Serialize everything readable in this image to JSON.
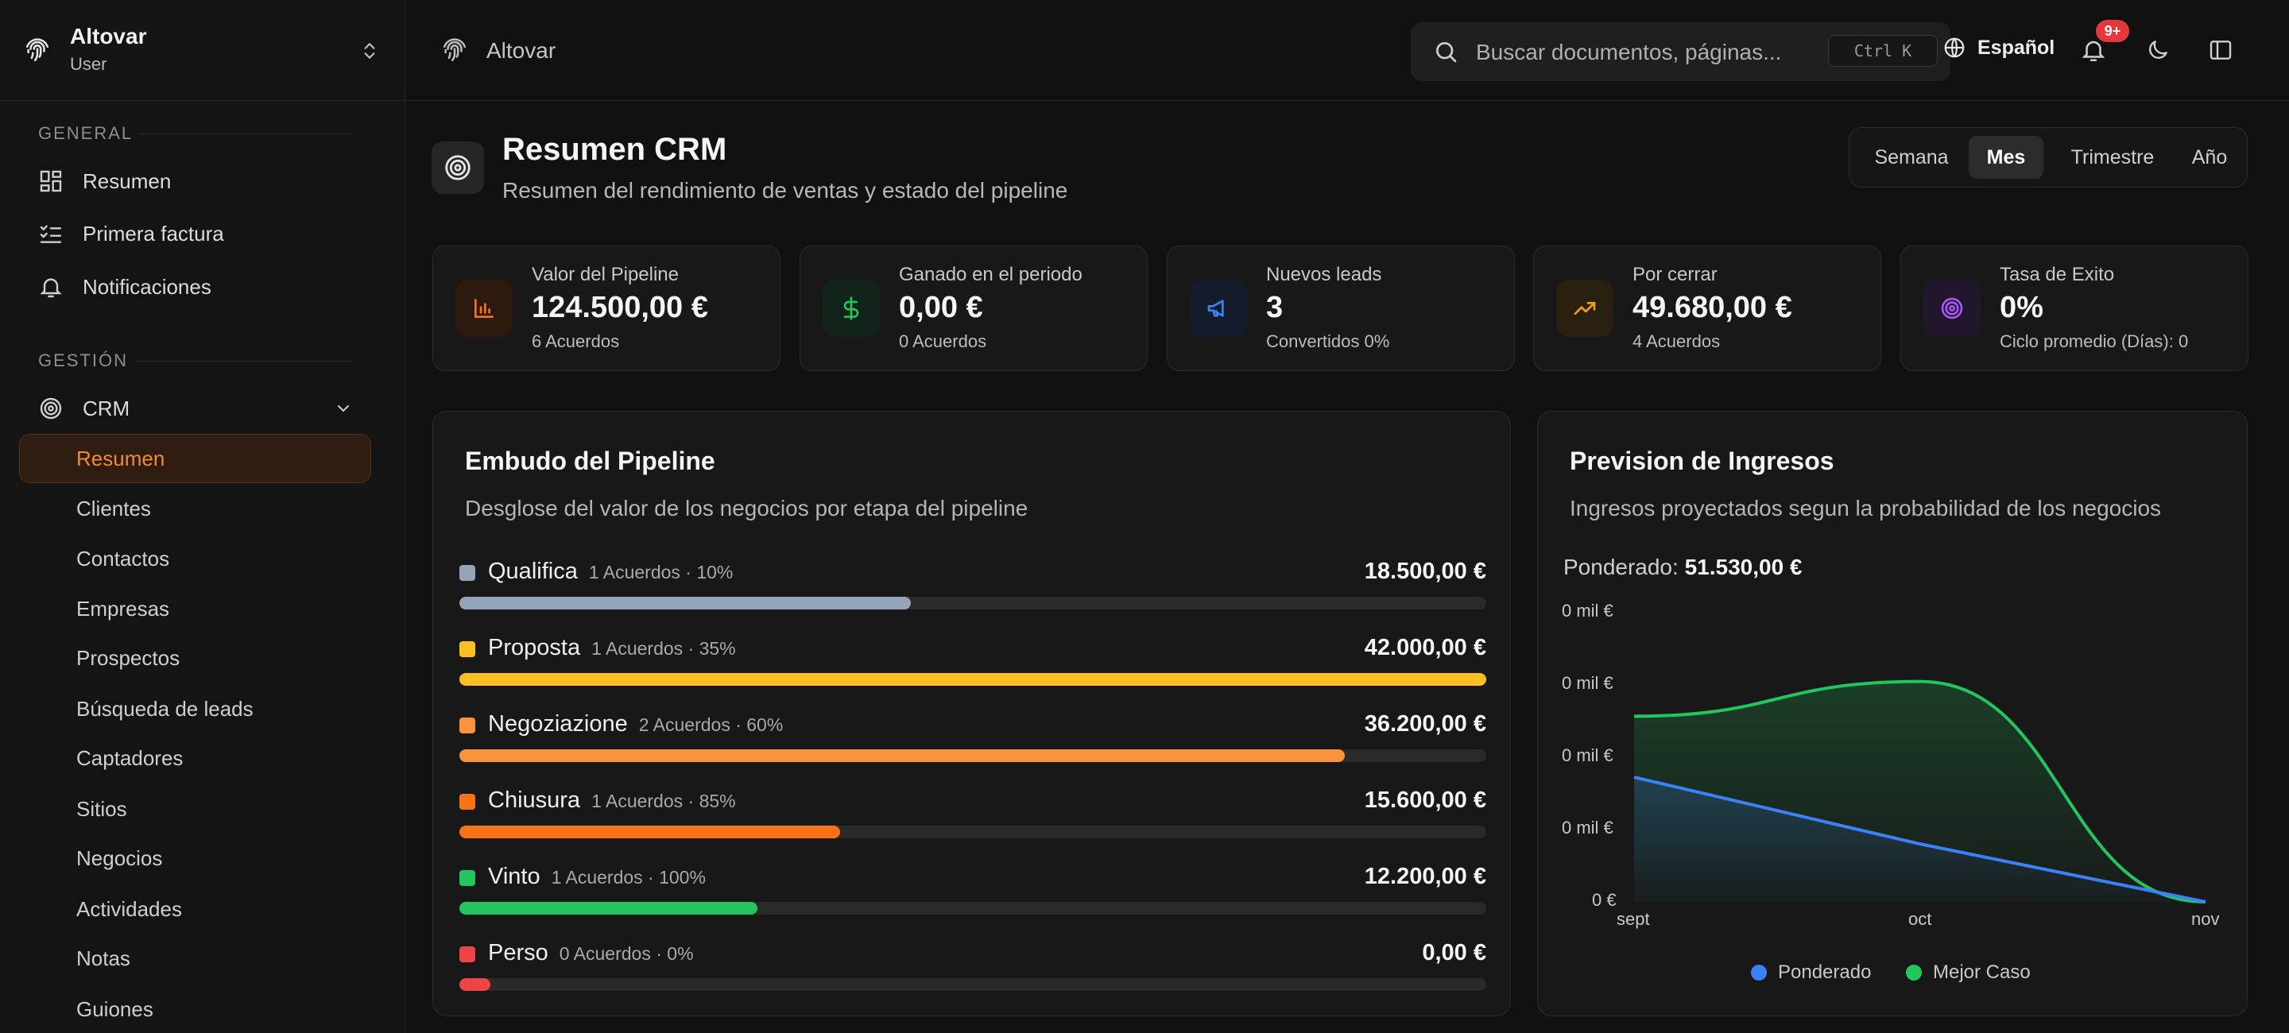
{
  "workspace": {
    "name": "Altovar",
    "role": "User"
  },
  "sidebar": {
    "general_label": "GENERAL",
    "general_items": [
      {
        "label": "Resumen",
        "icon": "dashboard-icon"
      },
      {
        "label": "Primera factura",
        "icon": "checklist-icon"
      },
      {
        "label": "Notificaciones",
        "icon": "bell-icon"
      }
    ],
    "gestion_label": "GESTIÓN",
    "crm": {
      "label": "CRM",
      "icon": "target-icon"
    },
    "crm_items": [
      "Resumen",
      "Clientes",
      "Contactos",
      "Empresas",
      "Prospectos",
      "Búsqueda de leads",
      "Captadores",
      "Sitios",
      "Negocios",
      "Actividades",
      "Notas",
      "Guiones"
    ],
    "active_item": "Resumen"
  },
  "header": {
    "breadcrumb": "Altovar",
    "search_placeholder": "Buscar documentos, páginas...",
    "search_shortcut": "Ctrl K",
    "language": "Español",
    "notifications_badge": "9+"
  },
  "page": {
    "title": "Resumen CRM",
    "subtitle": "Resumen del rendimiento de ventas y estado del pipeline",
    "periods": [
      "Semana",
      "Mes",
      "Trimestre",
      "Año"
    ],
    "active_period": "Mes"
  },
  "kpis": [
    {
      "label": "Valor del Pipeline",
      "value": "124.500,00 €",
      "sub": "6 Acuerdos",
      "icon": "bar-chart-icon",
      "color": "#f97316"
    },
    {
      "label": "Ganado en el periodo",
      "value": "0,00 €",
      "sub": "0 Acuerdos",
      "icon": "dollar-icon",
      "color": "#22c55e"
    },
    {
      "label": "Nuevos leads",
      "value": "3",
      "sub": "Convertidos 0%",
      "icon": "megaphone-icon",
      "color": "#3b82f6"
    },
    {
      "label": "Por cerrar",
      "value": "49.680,00 €",
      "sub": "4 Acuerdos",
      "icon": "trending-up-icon",
      "color": "#f59e0b"
    },
    {
      "label": "Tasa de Exito",
      "value": "0%",
      "sub": "Ciclo promedio (Días): 0",
      "icon": "target-icon",
      "color": "#a855f7"
    }
  ],
  "funnel": {
    "title": "Embudo del Pipeline",
    "subtitle": "Desglose del valor de los negocios por etapa del pipeline",
    "stages": [
      {
        "name": "Qualifica",
        "meta": "1 Acuerdos · 10%",
        "amount": "18.500,00 €",
        "color": "#94a3b8",
        "fill": 0.44
      },
      {
        "name": "Proposta",
        "meta": "1 Acuerdos · 35%",
        "amount": "42.000,00 €",
        "color": "#fbbf24",
        "fill": 1.0
      },
      {
        "name": "Negoziazione",
        "meta": "2 Acuerdos · 60%",
        "amount": "36.200,00 €",
        "color": "#fb923c",
        "fill": 0.862
      },
      {
        "name": "Chiusura",
        "meta": "1 Acuerdos · 85%",
        "amount": "15.600,00 €",
        "color": "#f97316",
        "fill": 0.371
      },
      {
        "name": "Vinto",
        "meta": "1 Acuerdos · 100%",
        "amount": "12.200,00 €",
        "color": "#22c55e",
        "fill": 0.29
      },
      {
        "name": "Perso",
        "meta": "0 Acuerdos · 0%",
        "amount": "0,00 €",
        "color": "#ef4444",
        "fill": 0.03
      }
    ]
  },
  "forecast": {
    "title": "Prevision de Ingresos",
    "subtitle": "Ingresos proyectados segun la probabilidad de los negocios",
    "weighted_label": "Ponderado:",
    "weighted_value": "51.530,00 €",
    "y_ticks": [
      "0 mil €",
      "0 mil €",
      "0 mil €",
      "0 mil €",
      "0 €"
    ],
    "x_ticks": [
      "sept",
      "oct",
      "nov"
    ],
    "legend": [
      {
        "name": "Ponderado",
        "color": "#3b82f6"
      },
      {
        "name": "Mejor Caso",
        "color": "#22c55e"
      }
    ]
  },
  "chart_data": {
    "type": "area",
    "categories": [
      "sept",
      "oct",
      "nov"
    ],
    "series": [
      {
        "name": "Ponderado",
        "values": [
          0.43,
          0.2,
          0
        ]
      },
      {
        "name": "Mejor Caso",
        "values": [
          0.64,
          0.76,
          0
        ]
      }
    ],
    "y_tick_labels": [
      "0 mil €",
      "0 mil €",
      "0 mil €",
      "0 mil €",
      "0 €"
    ],
    "ylim": [
      0,
      1
    ],
    "grid": false,
    "legend": "bottom"
  }
}
